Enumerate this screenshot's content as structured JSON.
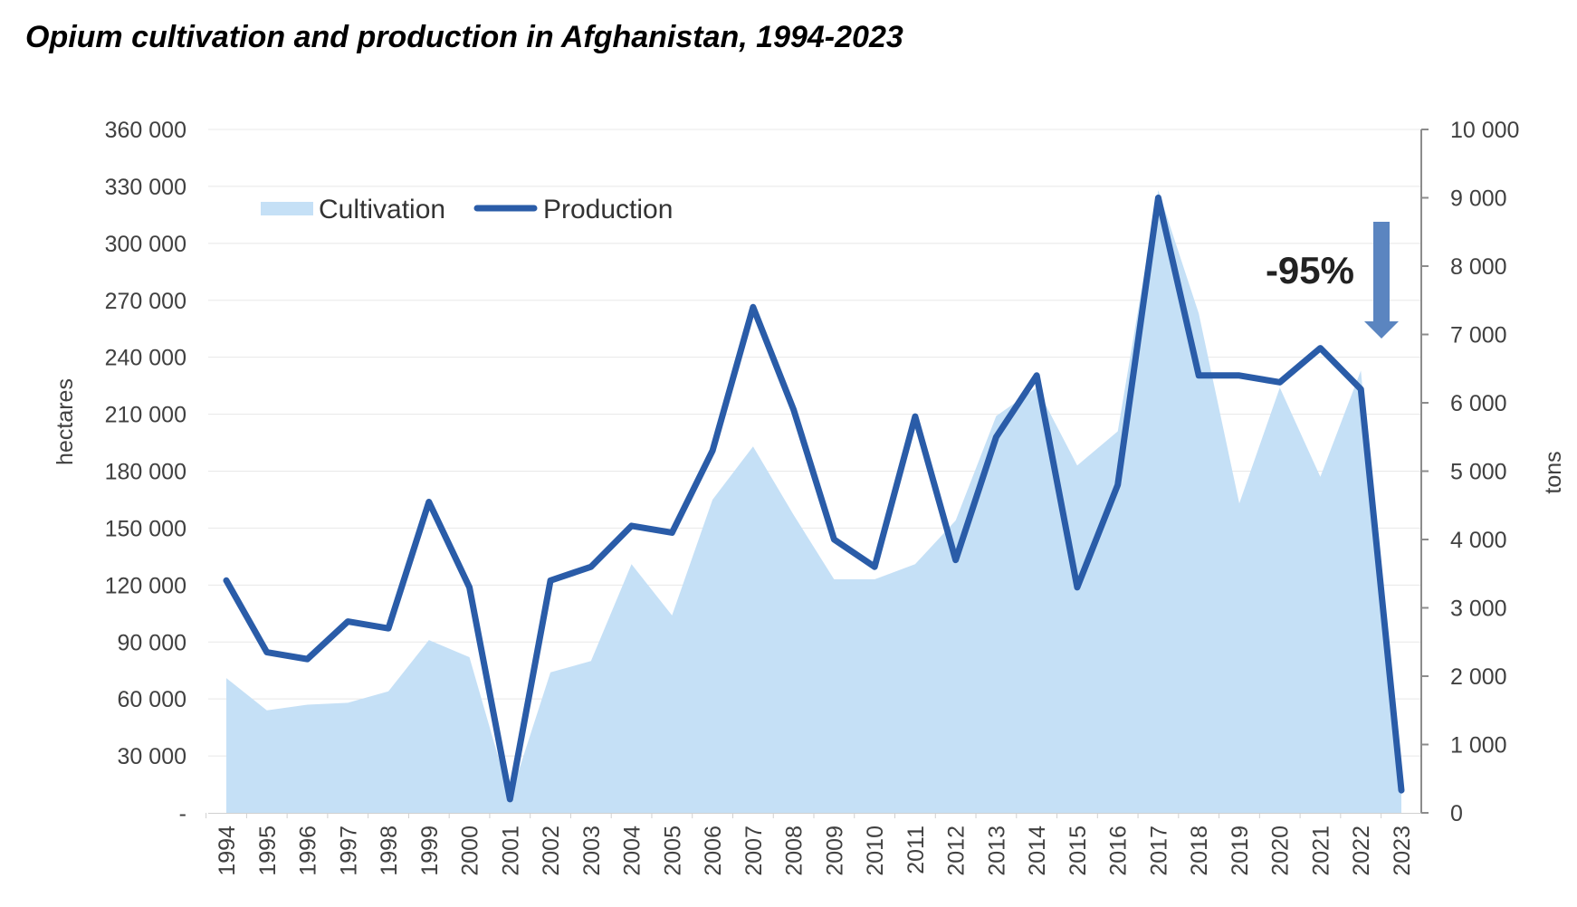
{
  "chart_data": {
    "type": "area+line",
    "title": "Opium cultivation and production in Afghanistan, 1994-2023",
    "categories": [
      "1994",
      "1995",
      "1996",
      "1997",
      "1998",
      "1999",
      "2000",
      "2001",
      "2002",
      "2003",
      "2004",
      "2005",
      "2006",
      "2007",
      "2008",
      "2009",
      "2010",
      "2011",
      "2012",
      "2013",
      "2014",
      "2015",
      "2016",
      "2017",
      "2018",
      "2019",
      "2020",
      "2021",
      "2022",
      "2023"
    ],
    "series": [
      {
        "name": "Cultivation",
        "kind": "area",
        "axis": "left",
        "color": "#c5e0f6",
        "values": [
          71000,
          54000,
          57000,
          58000,
          64000,
          91000,
          82000,
          8000,
          74000,
          80000,
          131000,
          104000,
          165000,
          193000,
          157000,
          123000,
          123000,
          131000,
          154000,
          209000,
          224000,
          183000,
          201000,
          328000,
          263000,
          163000,
          224000,
          177000,
          233000,
          10800
        ]
      },
      {
        "name": "Production",
        "kind": "line",
        "axis": "right",
        "color": "#2a5ca8",
        "values": [
          3400,
          2350,
          2250,
          2800,
          2700,
          4550,
          3300,
          200,
          3400,
          3600,
          4200,
          4100,
          5300,
          7400,
          5900,
          4000,
          3600,
          5800,
          3700,
          5500,
          6400,
          3300,
          4800,
          9000,
          6400,
          6400,
          6300,
          6800,
          6200,
          330
        ]
      }
    ],
    "ylabel": "hectares",
    "y2label": "tons",
    "ylim": [
      0,
      360000
    ],
    "y2lim": [
      0,
      10000
    ],
    "yticks": [
      0,
      30000,
      60000,
      90000,
      120000,
      150000,
      180000,
      210000,
      240000,
      270000,
      300000,
      330000,
      360000
    ],
    "ytick_labels": [
      "-",
      "30 000",
      "60 000",
      "90 000",
      "120 000",
      "150 000",
      "180 000",
      "210 000",
      "240 000",
      "270 000",
      "300 000",
      "330 000",
      "360 000"
    ],
    "y2ticks": [
      0,
      1000,
      2000,
      3000,
      4000,
      5000,
      6000,
      7000,
      8000,
      9000,
      10000
    ],
    "y2tick_labels": [
      "0",
      "1 000",
      "2 000",
      "3 000",
      "4 000",
      "5 000",
      "6 000",
      "7 000",
      "8 000",
      "9 000",
      "10 000"
    ],
    "grid": true,
    "legend": "top-left",
    "annotation": {
      "text": "-95%",
      "color": "#5b85c0"
    }
  }
}
